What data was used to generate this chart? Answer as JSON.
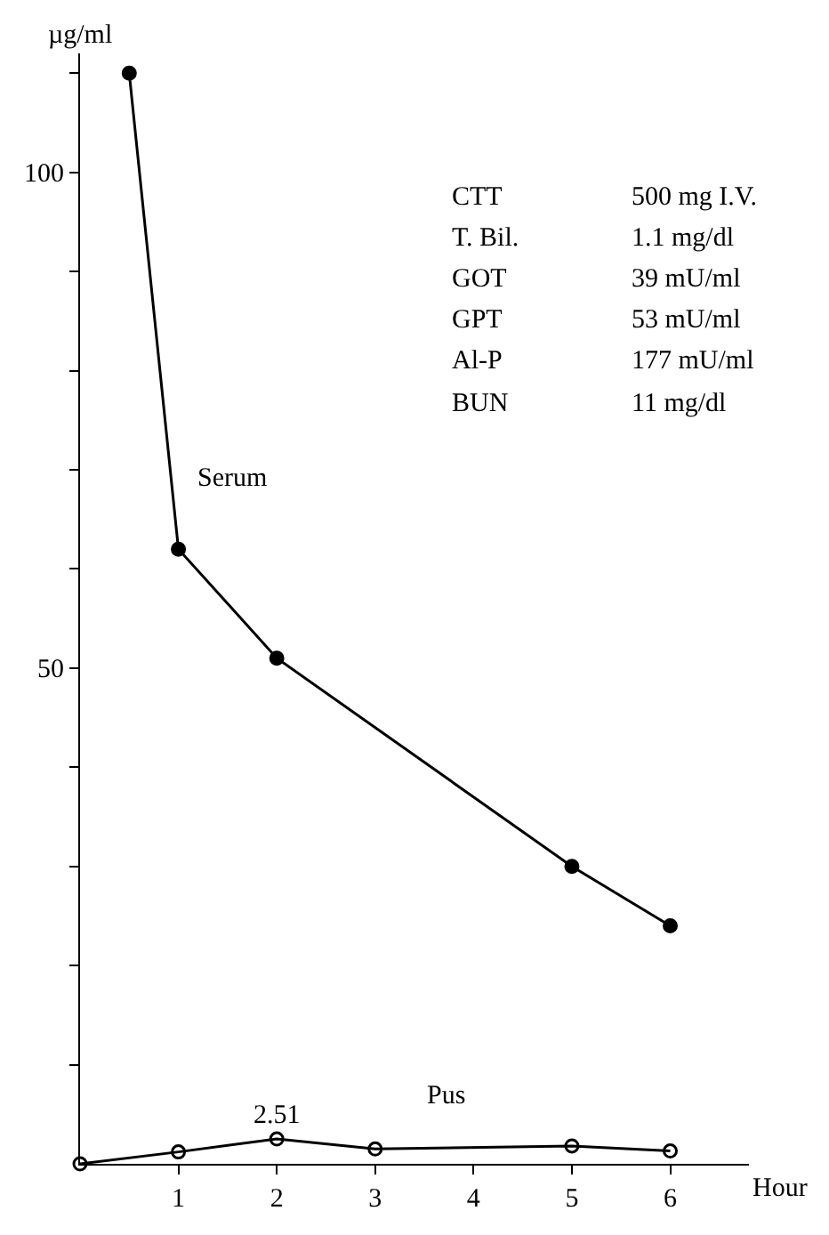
{
  "chart_data": {
    "type": "line",
    "xlabel": "Hour",
    "ylabel": "µg/ml",
    "x": [
      0.5,
      1,
      2,
      5,
      6
    ],
    "series": [
      {
        "name": "Serum",
        "color": "#000000",
        "marker": "circle",
        "values": [
          110,
          62,
          51,
          30,
          24
        ]
      },
      {
        "name": "Pus",
        "color": "#000000",
        "marker": "circle-open",
        "x": [
          0,
          1,
          2,
          3,
          5,
          6
        ],
        "values": [
          0,
          1.2,
          2.51,
          1.5,
          1.8,
          1.3
        ],
        "value_labels": [
          null,
          null,
          "2.51",
          null,
          null,
          null
        ]
      }
    ],
    "annotations": [
      "CTT",
      "500 mg I.V.",
      "T. Bil.",
      "1.1 mg/dl",
      "GOT",
      "39 mU/ml",
      "GPT",
      "53 mU/ml",
      "Al-P",
      "177 mU/ml",
      "BUN",
      "11 mg/dl"
    ],
    "xlim": [
      0,
      6.8
    ],
    "xticks": [
      1,
      2,
      3,
      4,
      5,
      6
    ],
    "ylim": [
      0,
      112
    ],
    "yticks": [
      {
        "value": 10,
        "label": null
      },
      {
        "value": 20,
        "label": null
      },
      {
        "value": 30,
        "label": null
      },
      {
        "value": 40,
        "label": null
      },
      50,
      {
        "value": 60,
        "label": null
      },
      {
        "value": 70,
        "label": null
      },
      {
        "value": 80,
        "label": null
      },
      {
        "value": 90,
        "label": null
      },
      100,
      {
        "value": 110,
        "label": null
      }
    ],
    "line_style": "solid"
  }
}
